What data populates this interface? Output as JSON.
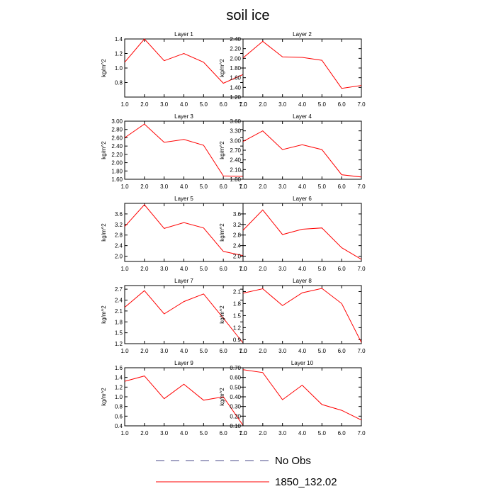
{
  "chart_data": {
    "type": "line",
    "title": "soil ice",
    "ylabel": "kg/m^2",
    "x": [
      1.0,
      2.0,
      3.0,
      4.0,
      5.0,
      6.0,
      7.0
    ],
    "xlim": [
      1.0,
      7.0
    ],
    "x_tick_labels": [
      "1.0",
      "2.0",
      "3.0",
      "4.0",
      "5.0",
      "6.0",
      "7.0"
    ],
    "legend": [
      {
        "label": "No Obs",
        "color": "#4a4a8a",
        "style": "dashed"
      },
      {
        "label": "1850_132.02",
        "color": "#ff0000",
        "style": "solid"
      }
    ],
    "series_color": "#ff0000",
    "panels": [
      {
        "title": "Layer 1",
        "ylim": [
          0.6,
          1.4
        ],
        "y_ticks": [
          "0.8",
          "1.0",
          "1.2",
          "1.4"
        ],
        "series": [
          {
            "name": "1850_132.02",
            "values": [
              1.08,
              1.4,
              1.1,
              1.2,
              1.08,
              0.79,
              0.91
            ]
          }
        ]
      },
      {
        "title": "Layer 2",
        "ylim": [
          1.2,
          2.4
        ],
        "y_ticks": [
          "1.20",
          "1.40",
          "1.60",
          "1.80",
          "2.00",
          "2.20",
          "2.40"
        ],
        "series": [
          {
            "name": "1850_132.02",
            "values": [
              2.01,
              2.35,
              2.03,
              2.02,
              1.96,
              1.38,
              1.44
            ]
          }
        ]
      },
      {
        "title": "Layer 3",
        "ylim": [
          1.6,
          3.0
        ],
        "y_ticks": [
          "1.60",
          "1.80",
          "2.00",
          "2.20",
          "2.40",
          "2.60",
          "2.80",
          "3.00"
        ],
        "series": [
          {
            "name": "1850_132.02",
            "values": [
              2.6,
              2.93,
              2.49,
              2.56,
              2.42,
              1.68,
              1.67
            ]
          }
        ]
      },
      {
        "title": "Layer 4",
        "ylim": [
          1.8,
          3.6
        ],
        "y_ticks": [
          "1.80",
          "2.10",
          "2.40",
          "2.70",
          "3.00",
          "3.30",
          "3.60"
        ],
        "series": [
          {
            "name": "1850_132.02",
            "values": [
              2.97,
              3.3,
              2.72,
              2.87,
              2.72,
              1.94,
              1.87
            ]
          }
        ]
      },
      {
        "title": "Layer 5",
        "ylim": [
          1.8,
          4.0
        ],
        "y_ticks": [
          "2.0",
          "2.4",
          "2.8",
          "3.2",
          "3.6"
        ],
        "series": [
          {
            "name": "1850_132.02",
            "values": [
              3.12,
              3.95,
              3.05,
              3.27,
              3.07,
              2.18,
              2.02
            ]
          }
        ]
      },
      {
        "title": "Layer 6",
        "ylim": [
          1.8,
          4.0
        ],
        "y_ticks": [
          "2.0",
          "2.4",
          "2.8",
          "3.2",
          "3.6"
        ],
        "series": [
          {
            "name": "1850_132.02",
            "values": [
              2.98,
              3.75,
              2.82,
              3.02,
              3.07,
              2.32,
              1.88
            ]
          }
        ]
      },
      {
        "title": "Layer 7",
        "ylim": [
          1.2,
          2.8
        ],
        "y_ticks": [
          "1.2",
          "1.5",
          "1.8",
          "2.1",
          "2.4",
          "2.7"
        ],
        "series": [
          {
            "name": "1850_132.02",
            "values": [
              2.2,
              2.66,
              2.02,
              2.36,
              2.57,
              1.9,
              1.22
            ]
          }
        ]
      },
      {
        "title": "Layer 8",
        "ylim": [
          0.8,
          2.25
        ],
        "y_ticks": [
          "0.9",
          "1.2",
          "1.5",
          "1.8",
          "2.1"
        ],
        "series": [
          {
            "name": "1850_132.02",
            "values": [
              2.06,
              2.17,
              1.75,
              2.07,
              2.18,
              1.8,
              0.83
            ]
          }
        ]
      },
      {
        "title": "Layer 9",
        "ylim": [
          0.4,
          1.6
        ],
        "y_ticks": [
          "0.4",
          "0.6",
          "0.8",
          "1.0",
          "1.2",
          "1.4",
          "1.6"
        ],
        "series": [
          {
            "name": "1850_132.02",
            "values": [
              1.32,
              1.43,
              0.96,
              1.26,
              0.93,
              1.0,
              0.41
            ]
          }
        ]
      },
      {
        "title": "Layer 10",
        "ylim": [
          0.1,
          0.7
        ],
        "y_ticks": [
          "0.10",
          "0.20",
          "0.30",
          "0.40",
          "0.50",
          "0.60",
          "0.70"
        ],
        "series": [
          {
            "name": "1850_132.02",
            "values": [
              0.68,
              0.65,
              0.37,
              0.52,
              0.32,
              0.26,
              0.16
            ]
          }
        ]
      }
    ]
  }
}
